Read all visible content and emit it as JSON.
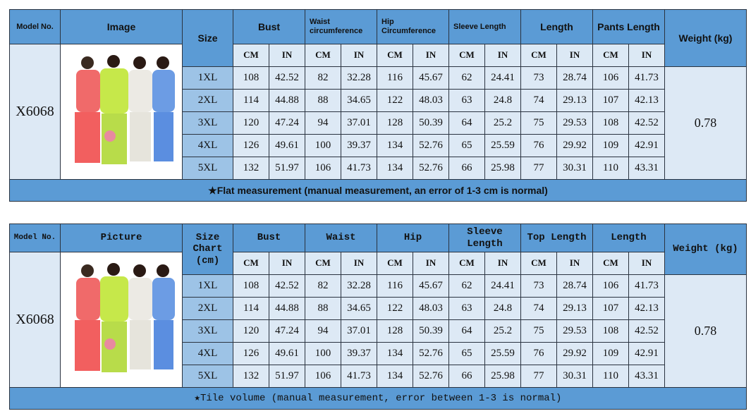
{
  "tables": [
    {
      "model_header": "Model No.",
      "image_header": "Image",
      "size_header": "Size",
      "groups": [
        "Bust",
        "Waist circumference",
        "Hip Circumference",
        "Sleeve Length",
        "Length",
        "Pants Length"
      ],
      "weight_header": "Weight (kg)",
      "units": [
        "CM",
        "IN"
      ],
      "model": "X6068",
      "weight": 0.78,
      "rows": [
        [
          "1XL",
          108,
          42.52,
          82,
          32.28,
          116,
          45.67,
          62,
          24.41,
          73,
          28.74,
          106,
          41.73
        ],
        [
          "2XL",
          114,
          44.88,
          88,
          34.65,
          122,
          48.03,
          63,
          24.8,
          74,
          29.13,
          107,
          42.13
        ],
        [
          "3XL",
          120,
          47.24,
          94,
          37.01,
          128,
          50.39,
          64,
          25.2,
          75,
          29.53,
          108,
          42.52
        ],
        [
          "4XL",
          126,
          49.61,
          100,
          39.37,
          134,
          52.76,
          65,
          25.59,
          76,
          29.92,
          109,
          42.91
        ],
        [
          "5XL",
          132,
          51.97,
          106,
          41.73,
          134,
          52.76,
          66,
          25.98,
          77,
          30.31,
          110,
          43.31
        ]
      ],
      "footer": "★Flat measurement (manual measurement, an error of 1-3 cm is normal)"
    },
    {
      "model_header": "Model No.",
      "image_header": "Picture",
      "size_header": "Size Chart (cm)",
      "groups": [
        "Bust",
        "Waist",
        "Hip",
        "Sleeve Length",
        "Top Length",
        "Length"
      ],
      "weight_header": "Weight (kg)",
      "units": [
        "CM",
        "IN"
      ],
      "model": "X6068",
      "weight": 0.78,
      "rows": [
        [
          "1XL",
          108,
          42.52,
          82,
          32.28,
          116,
          45.67,
          62,
          24.41,
          73,
          28.74,
          106,
          41.73
        ],
        [
          "2XL",
          114,
          44.88,
          88,
          34.65,
          122,
          48.03,
          63,
          24.8,
          74,
          29.13,
          107,
          42.13
        ],
        [
          "3XL",
          120,
          47.24,
          94,
          37.01,
          128,
          50.39,
          64,
          25.2,
          75,
          29.53,
          108,
          42.52
        ],
        [
          "4XL",
          126,
          49.61,
          100,
          39.37,
          134,
          52.76,
          65,
          25.59,
          76,
          29.92,
          109,
          42.91
        ],
        [
          "5XL",
          132,
          51.97,
          106,
          41.73,
          134,
          52.76,
          66,
          25.98,
          77,
          30.31,
          110,
          43.31
        ]
      ],
      "footer": "★Tile volume (manual measurement, error between 1-3 is normal)"
    }
  ]
}
